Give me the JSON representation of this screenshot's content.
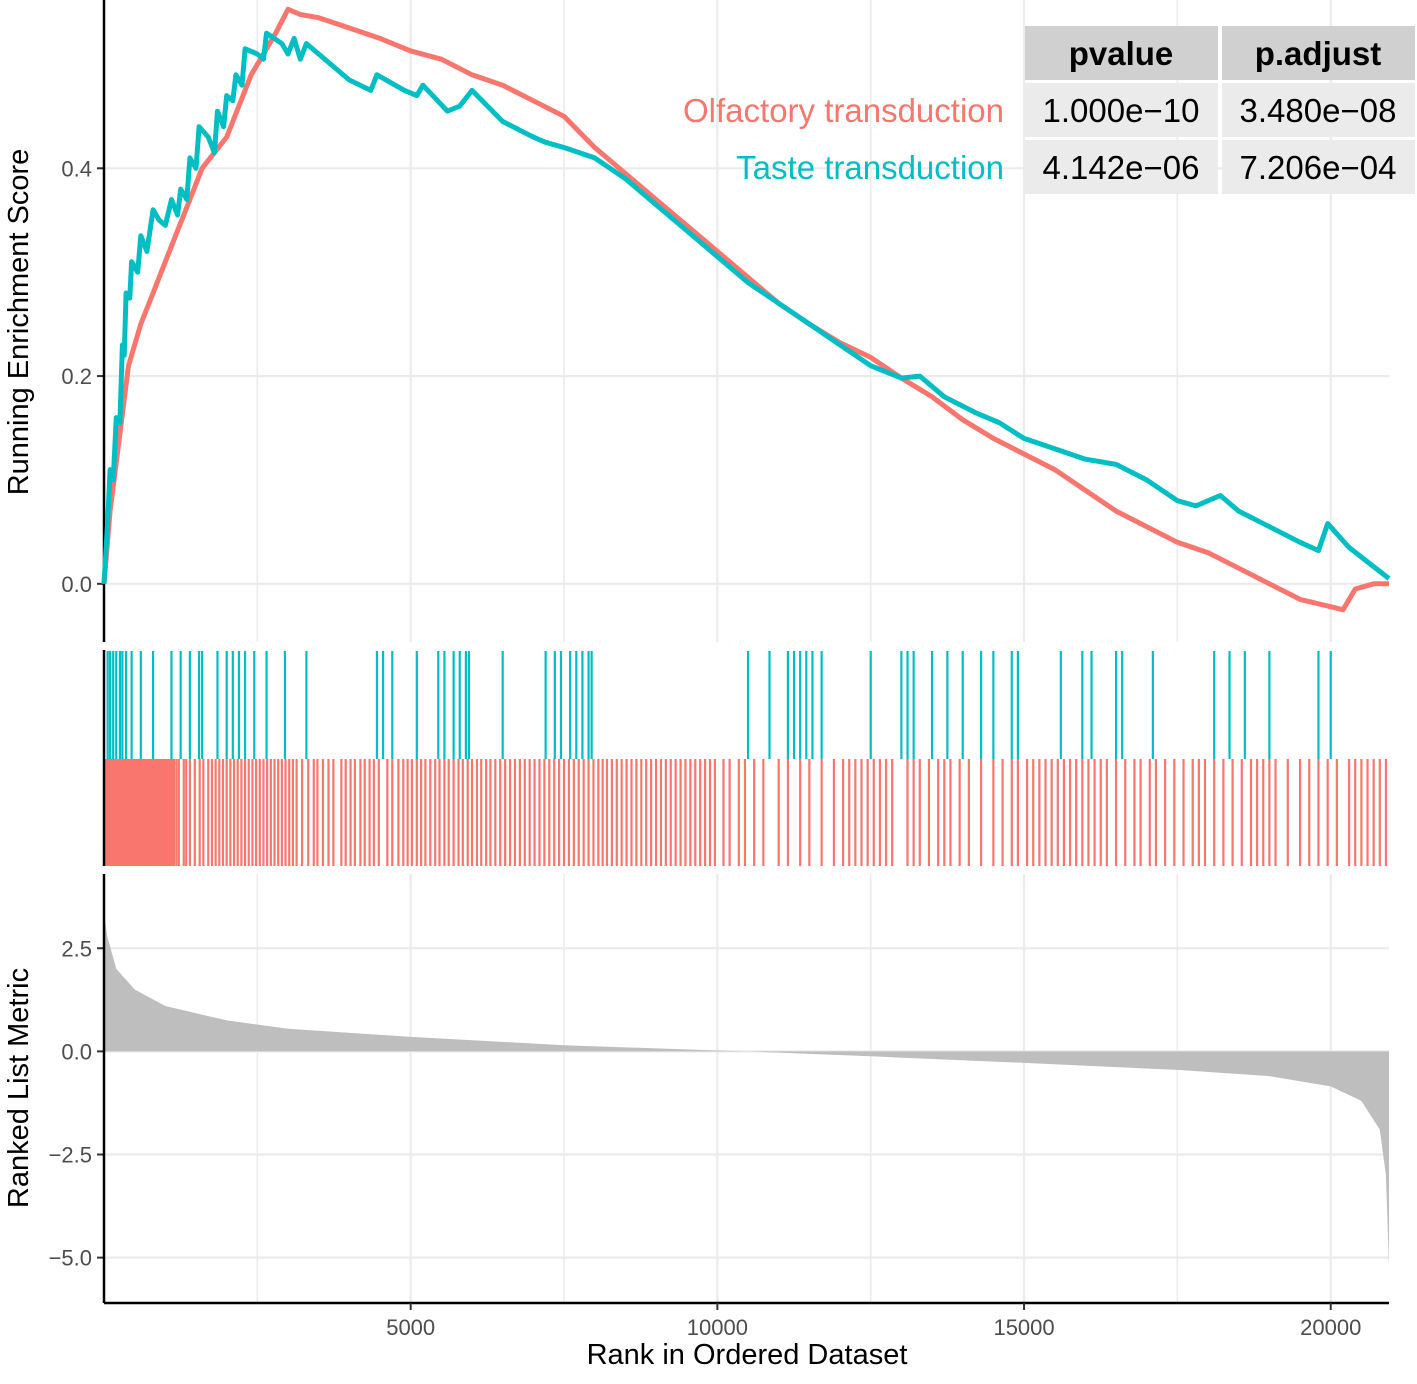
{
  "chart_data": {
    "type": "line",
    "x": {
      "label": "Rank in Ordered Dataset",
      "range": [
        0,
        20950
      ],
      "ticks": [
        5000,
        10000,
        15000,
        20000
      ],
      "tick_labels": [
        "5000",
        "10000",
        "15000",
        "20000"
      ]
    },
    "panels": {
      "enrichment": {
        "ylabel": "Running Enrichment Score",
        "ylim": [
          -0.056,
          0.562
        ],
        "yticks": [
          0.0,
          0.2,
          0.4
        ],
        "ytick_labels": [
          "0.0",
          "0.2",
          "0.4"
        ]
      },
      "ranked_metric": {
        "ylabel": "Ranked List Metric",
        "ylim": [
          -6.1,
          4.3
        ],
        "yticks": [
          2.5,
          0.0,
          -2.5,
          -5.0
        ],
        "ytick_labels": [
          "2.5",
          "0.0",
          "-2.5",
          "-5.0"
        ],
        "x": [
          0,
          50,
          200,
          500,
          1000,
          2000,
          3000,
          5000,
          7500,
          10000,
          10500,
          12500,
          15000,
          17500,
          19000,
          20000,
          20500,
          20800,
          20900,
          20950
        ],
        "y": [
          3.4,
          2.8,
          2.0,
          1.5,
          1.1,
          0.75,
          0.55,
          0.35,
          0.15,
          0.02,
          0.0,
          -0.12,
          -0.28,
          -0.45,
          -0.6,
          -0.85,
          -1.2,
          -1.9,
          -3.0,
          -5.2
        ]
      }
    },
    "series": [
      {
        "name": "Olfactory transduction",
        "color": "#F8766D",
        "points": [
          [
            0,
            0.0
          ],
          [
            100,
            0.07
          ],
          [
            250,
            0.14
          ],
          [
            400,
            0.21
          ],
          [
            600,
            0.25
          ],
          [
            800,
            0.28
          ],
          [
            1000,
            0.31
          ],
          [
            1200,
            0.34
          ],
          [
            1400,
            0.37
          ],
          [
            1600,
            0.4
          ],
          [
            1800,
            0.415
          ],
          [
            2000,
            0.43
          ],
          [
            2200,
            0.46
          ],
          [
            2400,
            0.49
          ],
          [
            2600,
            0.51
          ],
          [
            2800,
            0.53
          ],
          [
            3000,
            0.553
          ],
          [
            3200,
            0.548
          ],
          [
            3500,
            0.545
          ],
          [
            4000,
            0.535
          ],
          [
            4500,
            0.525
          ],
          [
            5000,
            0.513
          ],
          [
            5500,
            0.505
          ],
          [
            6000,
            0.49
          ],
          [
            6500,
            0.48
          ],
          [
            7000,
            0.465
          ],
          [
            7500,
            0.45
          ],
          [
            8000,
            0.42
          ],
          [
            8500,
            0.395
          ],
          [
            9000,
            0.37
          ],
          [
            9500,
            0.345
          ],
          [
            10000,
            0.32
          ],
          [
            10500,
            0.295
          ],
          [
            11000,
            0.27
          ],
          [
            11500,
            0.25
          ],
          [
            12000,
            0.232
          ],
          [
            12500,
            0.218
          ],
          [
            13000,
            0.198
          ],
          [
            13500,
            0.18
          ],
          [
            14000,
            0.158
          ],
          [
            14500,
            0.14
          ],
          [
            15000,
            0.125
          ],
          [
            15500,
            0.11
          ],
          [
            16000,
            0.09
          ],
          [
            16500,
            0.07
          ],
          [
            17000,
            0.055
          ],
          [
            17500,
            0.04
          ],
          [
            18000,
            0.03
          ],
          [
            18500,
            0.015
          ],
          [
            19000,
            0.0
          ],
          [
            19500,
            -0.015
          ],
          [
            20000,
            -0.022
          ],
          [
            20200,
            -0.025
          ],
          [
            20400,
            -0.005
          ],
          [
            20700,
            0.0
          ],
          [
            20950,
            0.0
          ]
        ],
        "pvalue": "1.000e−10",
        "p_adjust": "3.480e−08",
        "hits": [
          30,
          60,
          90,
          120,
          150,
          180,
          210,
          240,
          270,
          300,
          330,
          360,
          390,
          420,
          450,
          480,
          510,
          540,
          570,
          600,
          630,
          660,
          690,
          720,
          750,
          780,
          810,
          840,
          870,
          900,
          930,
          960,
          990,
          1020,
          1050,
          1080,
          1110,
          1140,
          1180,
          1220,
          1300,
          1340,
          1400,
          1480,
          1560,
          1620,
          1700,
          1760,
          1820,
          1880,
          1940,
          2000,
          2060,
          2120,
          2180,
          2240,
          2300,
          2360,
          2420,
          2480,
          2540,
          2600,
          2660,
          2720,
          2780,
          2840,
          2900,
          2960,
          3020,
          3080,
          3140,
          3230,
          3330,
          3420,
          3480,
          3570,
          3660,
          3740,
          3870,
          3940,
          4020,
          4090,
          4180,
          4250,
          4330,
          4400,
          4480,
          4620,
          4700,
          4800,
          4880,
          4950,
          5020,
          5100,
          5170,
          5240,
          5320,
          5400,
          5470,
          5550,
          5620,
          5700,
          5780,
          5850,
          5930,
          6000,
          6080,
          6150,
          6230,
          6300,
          6380,
          6460,
          6540,
          6620,
          6700,
          6780,
          6860,
          6940,
          7020,
          7100,
          7180,
          7260,
          7340,
          7420,
          7500,
          7580,
          7660,
          7740,
          7820,
          7900,
          7980,
          8060,
          8130,
          8200,
          8280,
          8360,
          8440,
          8520,
          8600,
          8680,
          8760,
          8840,
          8920,
          9000,
          9080,
          9160,
          9240,
          9320,
          9400,
          9480,
          9560,
          9640,
          9720,
          9800,
          9880,
          9960,
          10100,
          10200,
          10350,
          10450,
          10600,
          10750,
          11000,
          11150,
          11350,
          11500,
          11700,
          11900,
          12050,
          12150,
          12250,
          12350,
          12450,
          12550,
          12650,
          12750,
          12850,
          13100,
          13200,
          13300,
          13450,
          13600,
          13700,
          13800,
          13950,
          14100,
          14300,
          14500,
          14650,
          14800,
          14900,
          15050,
          15150,
          15250,
          15350,
          15450,
          15550,
          15650,
          15750,
          15850,
          15950,
          16050,
          16150,
          16250,
          16350,
          16500,
          16650,
          16800,
          16900,
          17050,
          17150,
          17300,
          17450,
          17600,
          17750,
          17850,
          17950,
          18100,
          18250,
          18400,
          18550,
          18700,
          18800,
          18900,
          19000,
          19100,
          19300,
          19500,
          19650,
          19800,
          19950,
          20100,
          20300,
          20400,
          20500,
          20600,
          20700,
          20800,
          20900
        ]
      },
      {
        "name": "Taste transduction",
        "color": "#00BFC4",
        "points": [
          [
            0,
            0.0
          ],
          [
            60,
            0.06
          ],
          [
            100,
            0.11
          ],
          [
            150,
            0.1
          ],
          [
            200,
            0.16
          ],
          [
            260,
            0.155
          ],
          [
            300,
            0.23
          ],
          [
            330,
            0.22
          ],
          [
            360,
            0.28
          ],
          [
            420,
            0.275
          ],
          [
            450,
            0.31
          ],
          [
            550,
            0.3
          ],
          [
            600,
            0.335
          ],
          [
            700,
            0.32
          ],
          [
            800,
            0.36
          ],
          [
            900,
            0.35
          ],
          [
            1000,
            0.345
          ],
          [
            1100,
            0.37
          ],
          [
            1200,
            0.355
          ],
          [
            1250,
            0.38
          ],
          [
            1350,
            0.37
          ],
          [
            1400,
            0.41
          ],
          [
            1500,
            0.4
          ],
          [
            1550,
            0.44
          ],
          [
            1700,
            0.43
          ],
          [
            1800,
            0.415
          ],
          [
            1850,
            0.455
          ],
          [
            1950,
            0.44
          ],
          [
            2000,
            0.47
          ],
          [
            2100,
            0.465
          ],
          [
            2150,
            0.49
          ],
          [
            2250,
            0.48
          ],
          [
            2300,
            0.515
          ],
          [
            2500,
            0.51
          ],
          [
            2600,
            0.505
          ],
          [
            2650,
            0.53
          ],
          [
            2900,
            0.52
          ],
          [
            3000,
            0.51
          ],
          [
            3100,
            0.525
          ],
          [
            3200,
            0.505
          ],
          [
            3300,
            0.52
          ],
          [
            4000,
            0.485
          ],
          [
            4350,
            0.475
          ],
          [
            4450,
            0.49
          ],
          [
            4900,
            0.475
          ],
          [
            5100,
            0.47
          ],
          [
            5200,
            0.48
          ],
          [
            5600,
            0.455
          ],
          [
            5800,
            0.46
          ],
          [
            6000,
            0.475
          ],
          [
            6500,
            0.445
          ],
          [
            7000,
            0.43
          ],
          [
            7200,
            0.425
          ],
          [
            7500,
            0.42
          ],
          [
            8000,
            0.41
          ],
          [
            8500,
            0.39
          ],
          [
            9000,
            0.365
          ],
          [
            9500,
            0.34
          ],
          [
            10000,
            0.315
          ],
          [
            10500,
            0.29
          ],
          [
            11000,
            0.27
          ],
          [
            11500,
            0.25
          ],
          [
            12000,
            0.23
          ],
          [
            12500,
            0.21
          ],
          [
            13000,
            0.198
          ],
          [
            13300,
            0.2
          ],
          [
            13700,
            0.18
          ],
          [
            14200,
            0.165
          ],
          [
            14600,
            0.155
          ],
          [
            15000,
            0.14
          ],
          [
            15500,
            0.13
          ],
          [
            16000,
            0.12
          ],
          [
            16500,
            0.115
          ],
          [
            17000,
            0.1
          ],
          [
            17500,
            0.08
          ],
          [
            17800,
            0.075
          ],
          [
            18200,
            0.085
          ],
          [
            18500,
            0.07
          ],
          [
            19000,
            0.055
          ],
          [
            19500,
            0.04
          ],
          [
            19800,
            0.032
          ],
          [
            19950,
            0.058
          ],
          [
            20300,
            0.035
          ],
          [
            20950,
            0.005
          ]
        ],
        "pvalue": "4.142e−06",
        "p_adjust": "7.206e−04",
        "hits": [
          60,
          100,
          150,
          200,
          260,
          300,
          360,
          450,
          600,
          800,
          1100,
          1250,
          1400,
          1550,
          1600,
          1850,
          2000,
          2100,
          2200,
          2300,
          2450,
          2650,
          2950,
          3300,
          4450,
          4550,
          4700,
          5100,
          5450,
          5550,
          5700,
          5800,
          5900,
          5950,
          6500,
          7200,
          7350,
          7450,
          7600,
          7700,
          7800,
          7900,
          7950,
          10500,
          10850,
          11150,
          11250,
          11350,
          11450,
          11550,
          11700,
          12500,
          13000,
          13100,
          13200,
          13500,
          13750,
          14000,
          14300,
          14500,
          14800,
          14900,
          15600,
          15950,
          16100,
          16500,
          16600,
          17100,
          18100,
          18350,
          18600,
          19000,
          19800,
          20000
        ]
      }
    ],
    "table": {
      "headers": [
        "pvalue",
        "p.adjust"
      ],
      "rows": [
        {
          "label": "Olfactory transduction",
          "pvalue": "1.000e−10",
          "p_adjust": "3.480e−08"
        },
        {
          "label": "Taste transduction",
          "pvalue": "4.142e−06",
          "p_adjust": "7.206e−04"
        }
      ]
    },
    "colors": {
      "olfactory": "#F8766D",
      "taste": "#00BFC4",
      "grid": "#ebebeb",
      "area": "#bebebe",
      "table_header": "#d0d0d0",
      "table_cell": "#ebebeb"
    }
  }
}
